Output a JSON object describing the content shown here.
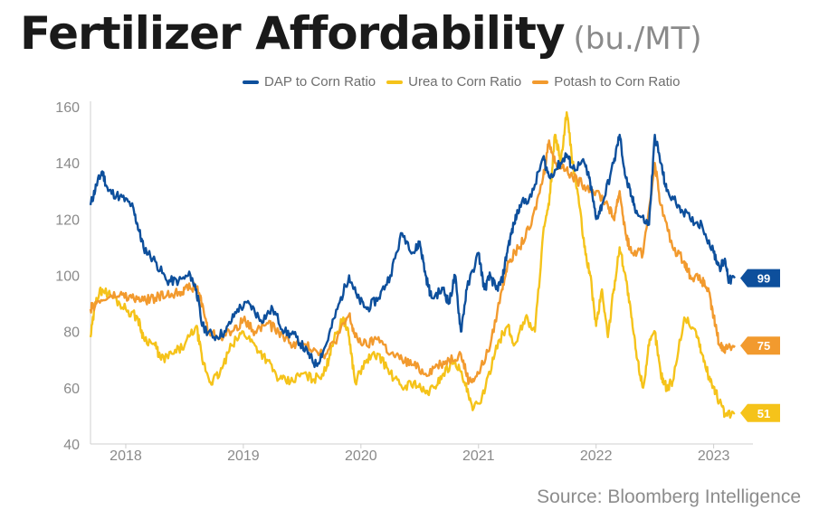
{
  "title": "Fertilizer Affordability",
  "title_unit": "(bu./MT)",
  "source": "Source: Bloomberg Intelligence",
  "chart_data": {
    "type": "line",
    "xlabel": "",
    "ylabel": "",
    "ylim": [
      40,
      160
    ],
    "xlim": [
      2017.7,
      2023.18
    ],
    "y_ticks": [
      40,
      60,
      80,
      100,
      120,
      140,
      160
    ],
    "x_ticks": [
      {
        "label": "2018",
        "value": 2018
      },
      {
        "label": "2019",
        "value": 2019
      },
      {
        "label": "2020",
        "value": 2020
      },
      {
        "label": "2021",
        "value": 2021
      },
      {
        "label": "2022",
        "value": 2022
      },
      {
        "label": "2023",
        "value": 2023
      }
    ],
    "grid": false,
    "legend_position": "top",
    "series": [
      {
        "name": "DAP to Corn Ratio",
        "color": "#0d4f9c",
        "end_label": "99",
        "points": [
          [
            2017.7,
            125
          ],
          [
            2017.75,
            132
          ],
          [
            2017.8,
            137
          ],
          [
            2017.85,
            130
          ],
          [
            2017.95,
            128
          ],
          [
            2018.05,
            125
          ],
          [
            2018.1,
            118
          ],
          [
            2018.15,
            110
          ],
          [
            2018.25,
            105
          ],
          [
            2018.35,
            98
          ],
          [
            2018.45,
            98
          ],
          [
            2018.55,
            100
          ],
          [
            2018.6,
            95
          ],
          [
            2018.65,
            82
          ],
          [
            2018.75,
            78
          ],
          [
            2018.85,
            80
          ],
          [
            2018.95,
            88
          ],
          [
            2019.05,
            90
          ],
          [
            2019.15,
            84
          ],
          [
            2019.25,
            88
          ],
          [
            2019.35,
            80
          ],
          [
            2019.45,
            78
          ],
          [
            2019.55,
            72
          ],
          [
            2019.62,
            68
          ],
          [
            2019.7,
            75
          ],
          [
            2019.8,
            88
          ],
          [
            2019.9,
            100
          ],
          [
            2019.97,
            92
          ],
          [
            2020.05,
            88
          ],
          [
            2020.15,
            92
          ],
          [
            2020.25,
            100
          ],
          [
            2020.35,
            115
          ],
          [
            2020.45,
            108
          ],
          [
            2020.5,
            112
          ],
          [
            2020.55,
            100
          ],
          [
            2020.6,
            92
          ],
          [
            2020.7,
            95
          ],
          [
            2020.75,
            90
          ],
          [
            2020.8,
            100
          ],
          [
            2020.85,
            80
          ],
          [
            2020.9,
            95
          ],
          [
            2021.0,
            108
          ],
          [
            2021.05,
            95
          ],
          [
            2021.1,
            100
          ],
          [
            2021.15,
            95
          ],
          [
            2021.2,
            98
          ],
          [
            2021.25,
            110
          ],
          [
            2021.3,
            118
          ],
          [
            2021.35,
            125
          ],
          [
            2021.45,
            128
          ],
          [
            2021.55,
            142
          ],
          [
            2021.6,
            135
          ],
          [
            2021.7,
            140
          ],
          [
            2021.75,
            143
          ],
          [
            2021.8,
            138
          ],
          [
            2021.9,
            140
          ],
          [
            2021.95,
            133
          ],
          [
            2022.0,
            120
          ],
          [
            2022.05,
            125
          ],
          [
            2022.15,
            140
          ],
          [
            2022.2,
            150
          ],
          [
            2022.25,
            135
          ],
          [
            2022.3,
            128
          ],
          [
            2022.35,
            122
          ],
          [
            2022.45,
            118
          ],
          [
            2022.5,
            150
          ],
          [
            2022.55,
            140
          ],
          [
            2022.6,
            130
          ],
          [
            2022.7,
            125
          ],
          [
            2022.8,
            120
          ],
          [
            2022.9,
            118
          ],
          [
            2023.0,
            108
          ],
          [
            2023.05,
            103
          ],
          [
            2023.1,
            105
          ],
          [
            2023.13,
            98
          ],
          [
            2023.18,
            99
          ]
        ]
      },
      {
        "name": "Urea to Corn Ratio",
        "color": "#f5c31a",
        "end_label": "51",
        "points": [
          [
            2017.7,
            78
          ],
          [
            2017.75,
            92
          ],
          [
            2017.8,
            95
          ],
          [
            2017.9,
            92
          ],
          [
            2018.0,
            88
          ],
          [
            2018.1,
            85
          ],
          [
            2018.15,
            78
          ],
          [
            2018.25,
            75
          ],
          [
            2018.3,
            70
          ],
          [
            2018.4,
            72
          ],
          [
            2018.5,
            75
          ],
          [
            2018.6,
            82
          ],
          [
            2018.65,
            70
          ],
          [
            2018.72,
            62
          ],
          [
            2018.8,
            65
          ],
          [
            2018.9,
            75
          ],
          [
            2019.0,
            80
          ],
          [
            2019.1,
            75
          ],
          [
            2019.2,
            70
          ],
          [
            2019.3,
            63
          ],
          [
            2019.4,
            62
          ],
          [
            2019.5,
            65
          ],
          [
            2019.6,
            63
          ],
          [
            2019.7,
            66
          ],
          [
            2019.75,
            75
          ],
          [
            2019.85,
            85
          ],
          [
            2019.9,
            78
          ],
          [
            2019.95,
            62
          ],
          [
            2020.05,
            70
          ],
          [
            2020.15,
            72
          ],
          [
            2020.25,
            65
          ],
          [
            2020.35,
            60
          ],
          [
            2020.45,
            62
          ],
          [
            2020.55,
            58
          ],
          [
            2020.62,
            60
          ],
          [
            2020.7,
            65
          ],
          [
            2020.8,
            70
          ],
          [
            2020.88,
            62
          ],
          [
            2020.95,
            52
          ],
          [
            2021.05,
            58
          ],
          [
            2021.15,
            75
          ],
          [
            2021.25,
            82
          ],
          [
            2021.3,
            75
          ],
          [
            2021.4,
            85
          ],
          [
            2021.48,
            80
          ],
          [
            2021.55,
            115
          ],
          [
            2021.6,
            125
          ],
          [
            2021.65,
            150
          ],
          [
            2021.7,
            140
          ],
          [
            2021.75,
            158
          ],
          [
            2021.8,
            140
          ],
          [
            2021.85,
            128
          ],
          [
            2021.9,
            110
          ],
          [
            2021.95,
            100
          ],
          [
            2022.0,
            82
          ],
          [
            2022.05,
            95
          ],
          [
            2022.1,
            78
          ],
          [
            2022.15,
            95
          ],
          [
            2022.2,
            110
          ],
          [
            2022.25,
            100
          ],
          [
            2022.3,
            85
          ],
          [
            2022.35,
            70
          ],
          [
            2022.4,
            60
          ],
          [
            2022.45,
            75
          ],
          [
            2022.5,
            80
          ],
          [
            2022.55,
            65
          ],
          [
            2022.6,
            60
          ],
          [
            2022.65,
            62
          ],
          [
            2022.75,
            85
          ],
          [
            2022.85,
            80
          ],
          [
            2022.9,
            72
          ],
          [
            2022.95,
            65
          ],
          [
            2023.0,
            60
          ],
          [
            2023.05,
            55
          ],
          [
            2023.1,
            50
          ],
          [
            2023.18,
            51
          ]
        ]
      },
      {
        "name": "Potash to Corn Ratio",
        "color": "#f29a2e",
        "end_label": "75",
        "points": [
          [
            2017.7,
            88
          ],
          [
            2017.75,
            90
          ],
          [
            2017.85,
            92
          ],
          [
            2017.95,
            93
          ],
          [
            2018.05,
            92
          ],
          [
            2018.15,
            91
          ],
          [
            2018.25,
            92
          ],
          [
            2018.35,
            93
          ],
          [
            2018.45,
            94
          ],
          [
            2018.5,
            95
          ],
          [
            2018.6,
            96
          ],
          [
            2018.65,
            90
          ],
          [
            2018.7,
            80
          ],
          [
            2018.8,
            78
          ],
          [
            2018.9,
            80
          ],
          [
            2019.0,
            84
          ],
          [
            2019.1,
            80
          ],
          [
            2019.2,
            83
          ],
          [
            2019.3,
            80
          ],
          [
            2019.4,
            76
          ],
          [
            2019.5,
            75
          ],
          [
            2019.6,
            74
          ],
          [
            2019.7,
            72
          ],
          [
            2019.8,
            78
          ],
          [
            2019.9,
            86
          ],
          [
            2019.95,
            78
          ],
          [
            2020.05,
            75
          ],
          [
            2020.15,
            78
          ],
          [
            2020.25,
            72
          ],
          [
            2020.35,
            70
          ],
          [
            2020.45,
            68
          ],
          [
            2020.55,
            65
          ],
          [
            2020.65,
            68
          ],
          [
            2020.75,
            70
          ],
          [
            2020.85,
            72
          ],
          [
            2020.92,
            62
          ],
          [
            2021.0,
            65
          ],
          [
            2021.1,
            75
          ],
          [
            2021.2,
            95
          ],
          [
            2021.25,
            105
          ],
          [
            2021.35,
            110
          ],
          [
            2021.45,
            118
          ],
          [
            2021.55,
            135
          ],
          [
            2021.6,
            148
          ],
          [
            2021.65,
            140
          ],
          [
            2021.75,
            138
          ],
          [
            2021.8,
            135
          ],
          [
            2021.9,
            132
          ],
          [
            2022.0,
            130
          ],
          [
            2022.1,
            125
          ],
          [
            2022.15,
            120
          ],
          [
            2022.2,
            130
          ],
          [
            2022.25,
            115
          ],
          [
            2022.3,
            108
          ],
          [
            2022.4,
            108
          ],
          [
            2022.5,
            140
          ],
          [
            2022.55,
            125
          ],
          [
            2022.65,
            110
          ],
          [
            2022.75,
            105
          ],
          [
            2022.8,
            100
          ],
          [
            2022.9,
            98
          ],
          [
            2022.95,
            95
          ],
          [
            2023.0,
            85
          ],
          [
            2023.05,
            75
          ],
          [
            2023.1,
            74
          ],
          [
            2023.18,
            75
          ]
        ]
      }
    ]
  }
}
